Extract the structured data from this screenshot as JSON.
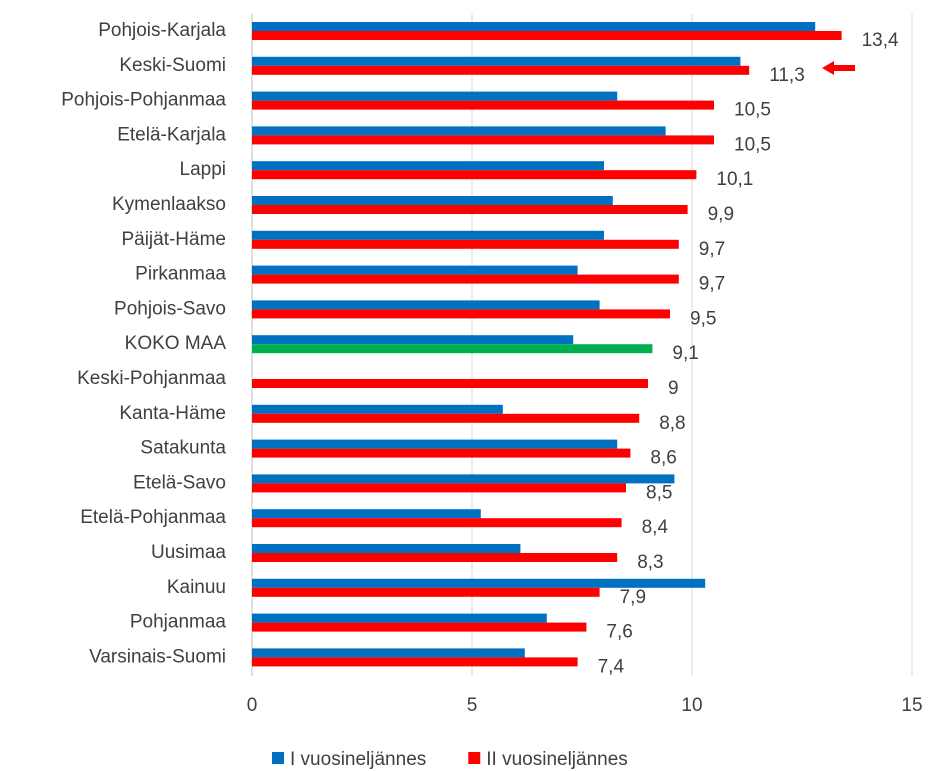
{
  "chart_data": {
    "type": "hbar",
    "categories": [
      "Pohjois-Karjala",
      "Keski-Suomi",
      "Pohjois-Pohjanmaa",
      "Etelä-Karjala",
      "Lappi",
      "Kymenlaakso",
      "Päijät-Häme",
      "Pirkanmaa",
      "Pohjois-Savo",
      "KOKO MAA",
      "Keski-Pohjanmaa",
      "Kanta-Häme",
      "Satakunta",
      "Etelä-Savo",
      "Etelä-Pohjanmaa",
      "Uusimaa",
      "Kainuu",
      "Pohjanmaa",
      "Varsinais-Suomi"
    ],
    "series": [
      {
        "name": "I vuosineljännes",
        "color": "#0070c0",
        "values": [
          12.8,
          11.1,
          8.3,
          9.4,
          8.0,
          8.2,
          8.0,
          7.4,
          7.9,
          7.3,
          null,
          5.7,
          8.3,
          9.6,
          5.2,
          6.1,
          10.3,
          6.7,
          6.2
        ]
      },
      {
        "name": "II vuosineljännes",
        "color": "#ff0000",
        "colors": [
          "#ff0000",
          "#ff0000",
          "#ff0000",
          "#ff0000",
          "#ff0000",
          "#ff0000",
          "#ff0000",
          "#ff0000",
          "#ff0000",
          "#00b050",
          "#ff0000",
          "#ff0000",
          "#ff0000",
          "#ff0000",
          "#ff0000",
          "#ff0000",
          "#ff0000",
          "#ff0000",
          "#ff0000"
        ],
        "values": [
          13.4,
          11.3,
          10.5,
          10.5,
          10.1,
          9.9,
          9.7,
          9.7,
          9.5,
          9.1,
          9,
          8.8,
          8.6,
          8.5,
          8.4,
          8.3,
          7.9,
          7.6,
          7.4
        ],
        "value_labels": [
          "13,4",
          "11,3",
          "10,5",
          "10,5",
          "10,1",
          "9,9",
          "9,7",
          "9,7",
          "9,5",
          "9,1",
          "9",
          "8,8",
          "8,6",
          "8,5",
          "8,4",
          "8,3",
          "7,9",
          "7,6",
          "7,4"
        ]
      }
    ],
    "xlim": [
      0,
      15
    ],
    "xticks": [
      0,
      5,
      10,
      15
    ],
    "grid": true,
    "legend": "bottom"
  }
}
